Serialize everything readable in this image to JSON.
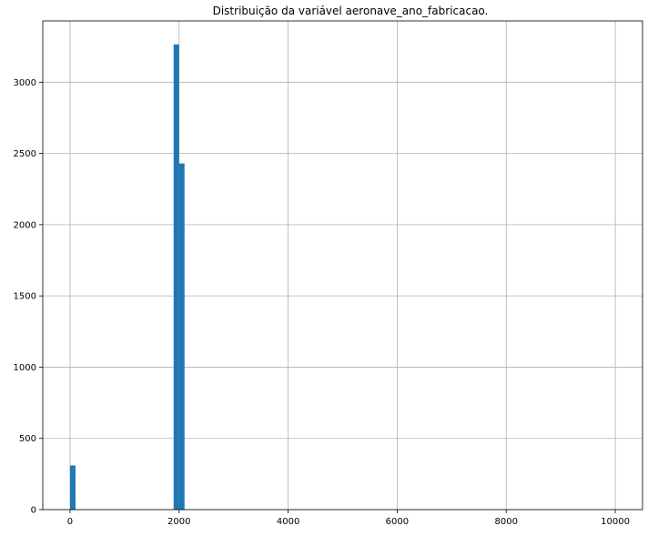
{
  "chart_data": {
    "type": "bar",
    "title": "Distribuição da variável aeronave_ano_fabricacao.",
    "xlabel": "",
    "ylabel": "",
    "xlim": [
      -500,
      10500
    ],
    "ylim": [
      0,
      3430
    ],
    "grid": true,
    "bar_color": "#1f77b4",
    "bin_width": 100,
    "bins": [
      {
        "x_start": 0,
        "x_end": 100,
        "count": 310
      },
      {
        "x_start": 1900,
        "x_end": 2000,
        "count": 3265
      },
      {
        "x_start": 2000,
        "x_end": 2100,
        "count": 2430
      }
    ],
    "x_ticks": [
      0,
      2000,
      4000,
      6000,
      8000,
      10000
    ],
    "x_tick_labels": [
      "0",
      "2000",
      "4000",
      "6000",
      "8000",
      "10000"
    ],
    "y_ticks": [
      0,
      500,
      1000,
      1500,
      2000,
      2500,
      3000
    ],
    "y_tick_labels": [
      "0",
      "500",
      "1000",
      "1500",
      "2000",
      "2500",
      "3000"
    ]
  }
}
